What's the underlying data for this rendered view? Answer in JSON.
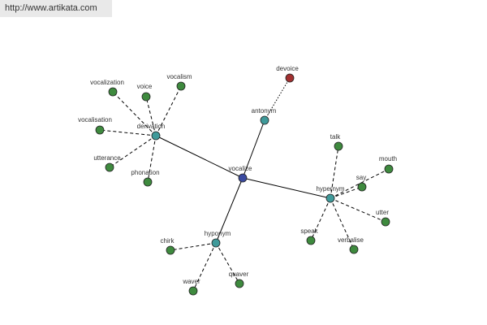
{
  "header": {
    "url": "http://www.artikata.com"
  },
  "nodes": [
    {
      "label": "vocalize"
    },
    {
      "label": "derivation"
    },
    {
      "label": "antonym"
    },
    {
      "label": "hypernym"
    },
    {
      "label": "hyponym"
    },
    {
      "label": "devoice"
    },
    {
      "label": "vocalization"
    },
    {
      "label": "voice"
    },
    {
      "label": "vocalism"
    },
    {
      "label": "vocalisation"
    },
    {
      "label": "utterance"
    },
    {
      "label": "phonation"
    },
    {
      "label": "talk"
    },
    {
      "label": "mouth"
    },
    {
      "label": "say"
    },
    {
      "label": "utter"
    },
    {
      "label": "speak"
    },
    {
      "label": "verbalise"
    },
    {
      "label": "chirk"
    },
    {
      "label": "waver"
    },
    {
      "label": "quaver"
    }
  ]
}
